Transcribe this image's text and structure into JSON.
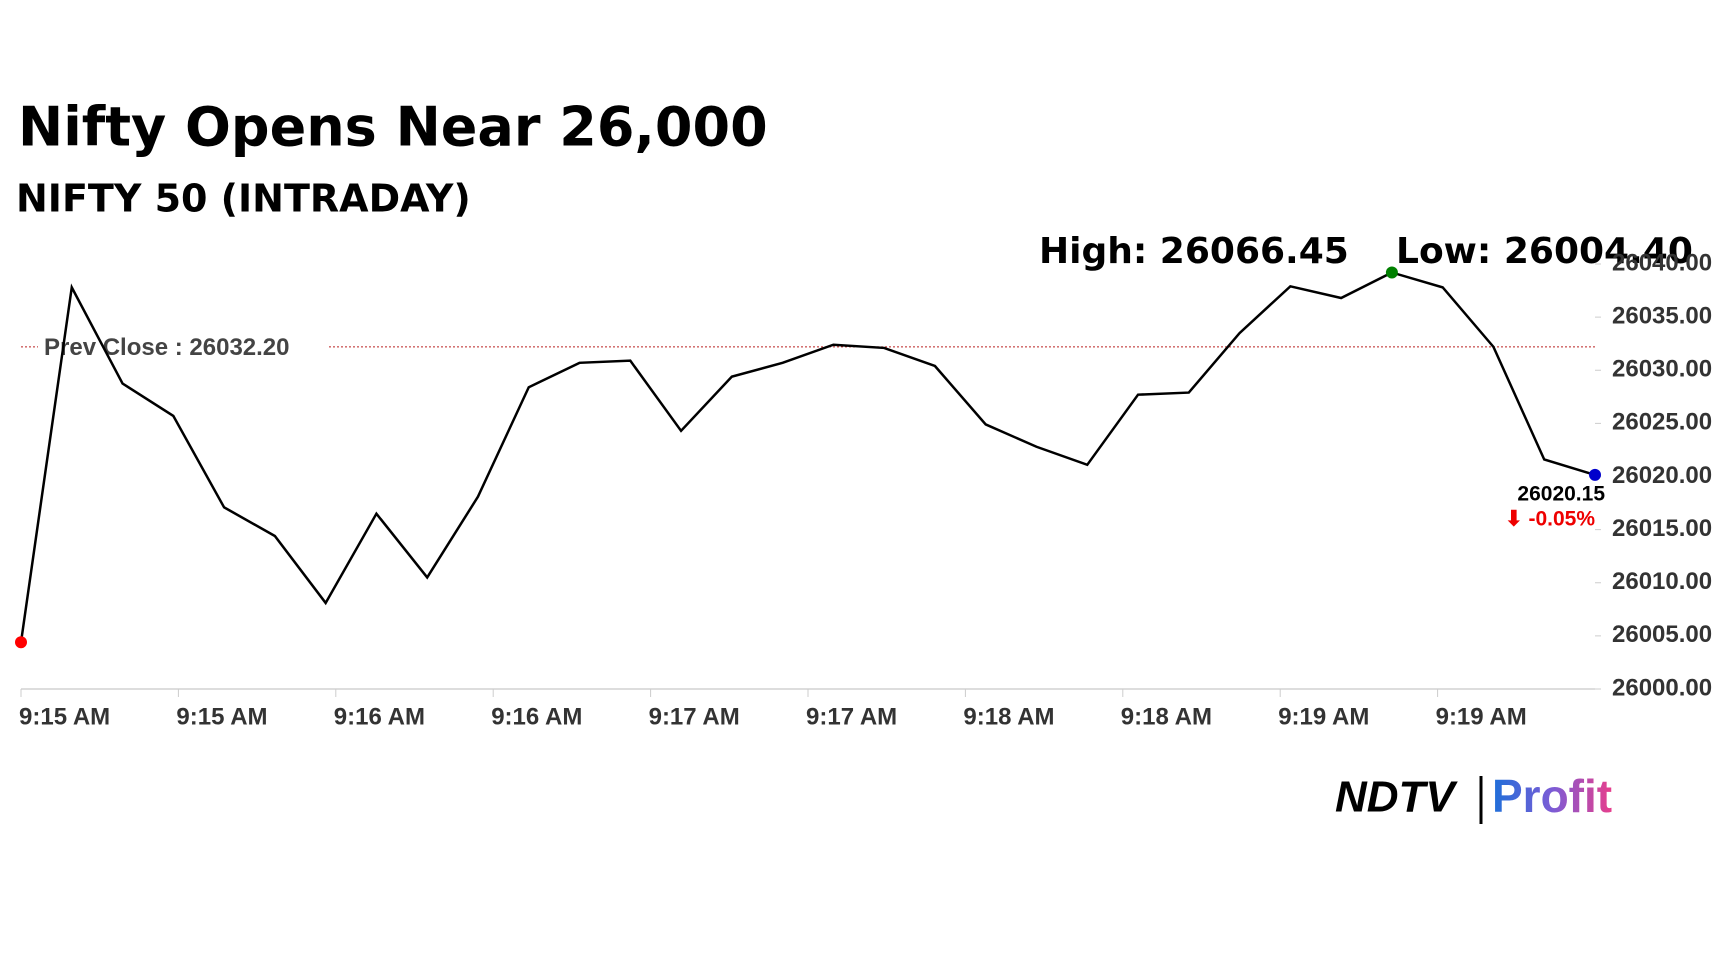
{
  "chart_data": {
    "type": "line",
    "title": "Nifty Opens Near 26,000",
    "subtitle": "NIFTY 50 (INTRADAY)",
    "high_label": "High: 26066.45",
    "low_label": "Low: 26004.40",
    "prev_close": {
      "value": 26032.2,
      "label": "Prev Close : 26032.20"
    },
    "last_label": "26020.15",
    "change_label": "⬇ -0.05%",
    "color": "#000000",
    "start_color": "#ff0000",
    "high_color": "#008000",
    "end_color": "#0000cc",
    "xlim": [
      0,
      31
    ],
    "xticks": [
      {
        "value": 0,
        "label": "9:15 AM"
      },
      {
        "value": 3.1,
        "label": "9:15 AM"
      },
      {
        "value": 6.2,
        "label": "9:16 AM"
      },
      {
        "value": 9.3,
        "label": "9:16 AM"
      },
      {
        "value": 12.4,
        "label": "9:17 AM"
      },
      {
        "value": 15.5,
        "label": "9:17 AM"
      },
      {
        "value": 18.6,
        "label": "9:18 AM"
      },
      {
        "value": 21.7,
        "label": "9:18 AM"
      },
      {
        "value": 24.8,
        "label": "9:19 AM"
      },
      {
        "value": 27.9,
        "label": "9:19 AM"
      }
    ],
    "ylim": [
      26000,
      26040
    ],
    "yticks": [
      {
        "value": 26000,
        "label": "26000.00"
      },
      {
        "value": 26005,
        "label": "26005.00"
      },
      {
        "value": 26010,
        "label": "26010.00"
      },
      {
        "value": 26015,
        "label": "26015.00"
      },
      {
        "value": 26020,
        "label": "26020.00"
      },
      {
        "value": 26025,
        "label": "26025.00"
      },
      {
        "value": 26030,
        "label": "26030.00"
      },
      {
        "value": 26035,
        "label": "26035.00"
      },
      {
        "value": 26040,
        "label": "26040.00"
      }
    ],
    "values": [
      26004.4,
      26037.8,
      26028.75,
      26025.7,
      26017.1,
      26014.4,
      26008.1,
      26016.5,
      26010.5,
      26018.1,
      26028.4,
      26030.7,
      26030.9,
      26024.3,
      26029.4,
      26030.7,
      26032.4,
      26032.1,
      26030.4,
      26024.9,
      26022.8,
      26021.1,
      26027.7,
      26027.9,
      26033.5,
      26037.9,
      26036.8,
      26039.2,
      26037.8,
      26032.2,
      26021.6,
      26020.15
    ]
  },
  "logo": {
    "left": "NDTV",
    "right": "Profit"
  }
}
